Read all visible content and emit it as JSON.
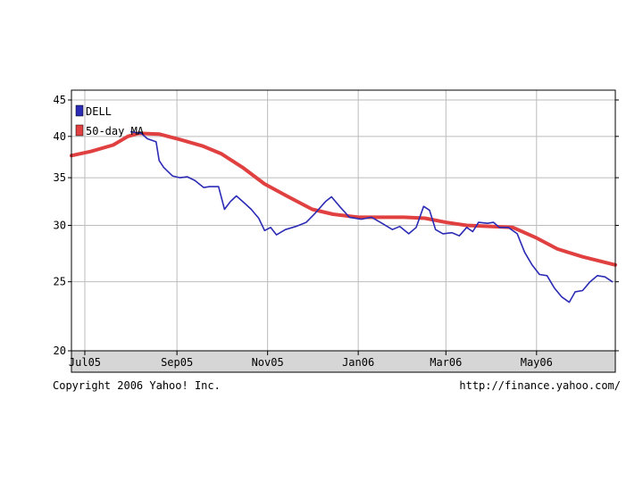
{
  "chart_data": {
    "type": "line",
    "title": "",
    "xlabel": "",
    "ylabel": "",
    "y_scale": "log",
    "ylim": [
      20,
      45
    ],
    "y_ticks": [
      20,
      25,
      30,
      35,
      40,
      45
    ],
    "x_range": [
      "2005-06-22",
      "2006-06-23"
    ],
    "x_ticks": [
      {
        "date": "2005-07-01",
        "label": "Jul05"
      },
      {
        "date": "2005-09-01",
        "label": "Sep05"
      },
      {
        "date": "2005-11-01",
        "label": "Nov05"
      },
      {
        "date": "2006-01-01",
        "label": "Jan06"
      },
      {
        "date": "2006-03-01",
        "label": "Mar06"
      },
      {
        "date": "2006-05-01",
        "label": "May06"
      }
    ],
    "grid": true,
    "legend": "top-left",
    "series": [
      {
        "name": "DELL",
        "color": "#2b2bb5",
        "points": [
          [
            "2005-08-01",
            40.6
          ],
          [
            "2005-08-08",
            40.4
          ],
          [
            "2005-08-12",
            39.7
          ],
          [
            "2005-08-18",
            39.3
          ],
          [
            "2005-08-20",
            37.0
          ],
          [
            "2005-08-23",
            36.2
          ],
          [
            "2005-08-29",
            35.2
          ],
          [
            "2005-09-03",
            35.0
          ],
          [
            "2005-09-08",
            35.1
          ],
          [
            "2005-09-13",
            34.7
          ],
          [
            "2005-09-19",
            33.9
          ],
          [
            "2005-09-23",
            34.0
          ],
          [
            "2005-09-29",
            34.0
          ],
          [
            "2005-10-03",
            31.6
          ],
          [
            "2005-10-07",
            32.4
          ],
          [
            "2005-10-11",
            33.0
          ],
          [
            "2005-10-16",
            32.3
          ],
          [
            "2005-10-21",
            31.6
          ],
          [
            "2005-10-26",
            30.7
          ],
          [
            "2005-10-30",
            29.5
          ],
          [
            "2005-11-03",
            29.8
          ],
          [
            "2005-11-07",
            29.1
          ],
          [
            "2005-11-13",
            29.6
          ],
          [
            "2005-11-20",
            29.9
          ],
          [
            "2005-11-27",
            30.3
          ],
          [
            "2005-12-03",
            31.2
          ],
          [
            "2005-12-10",
            32.4
          ],
          [
            "2005-12-14",
            32.9
          ],
          [
            "2005-12-20",
            31.8
          ],
          [
            "2005-12-26",
            30.8
          ],
          [
            "2006-01-03",
            30.6
          ],
          [
            "2006-01-10",
            30.8
          ],
          [
            "2006-01-17",
            30.2
          ],
          [
            "2006-01-24",
            29.6
          ],
          [
            "2006-01-29",
            29.9
          ],
          [
            "2006-02-04",
            29.2
          ],
          [
            "2006-02-09",
            29.8
          ],
          [
            "2006-02-14",
            31.9
          ],
          [
            "2006-02-18",
            31.5
          ],
          [
            "2006-02-22",
            29.6
          ],
          [
            "2006-02-27",
            29.2
          ],
          [
            "2006-03-05",
            29.3
          ],
          [
            "2006-03-10",
            29.0
          ],
          [
            "2006-03-15",
            29.8
          ],
          [
            "2006-03-19",
            29.4
          ],
          [
            "2006-03-23",
            30.3
          ],
          [
            "2006-03-29",
            30.2
          ],
          [
            "2006-04-02",
            30.3
          ],
          [
            "2006-04-06",
            29.8
          ],
          [
            "2006-04-12",
            29.8
          ],
          [
            "2006-04-18",
            29.2
          ],
          [
            "2006-04-23",
            27.5
          ],
          [
            "2006-04-28",
            26.4
          ],
          [
            "2006-05-03",
            25.6
          ],
          [
            "2006-05-08",
            25.5
          ],
          [
            "2006-05-13",
            24.5
          ],
          [
            "2006-05-18",
            23.8
          ],
          [
            "2006-05-23",
            23.4
          ],
          [
            "2006-05-27",
            24.2
          ],
          [
            "2006-06-01",
            24.3
          ],
          [
            "2006-06-06",
            25.0
          ],
          [
            "2006-06-11",
            25.5
          ],
          [
            "2006-06-16",
            25.4
          ],
          [
            "2006-06-21",
            25.0
          ]
        ]
      },
      {
        "name": "50-day MA",
        "color": "#e04040",
        "points": [
          [
            "2005-06-22",
            37.6
          ],
          [
            "2005-07-05",
            38.1
          ],
          [
            "2005-07-20",
            38.9
          ],
          [
            "2005-07-30",
            40.0
          ],
          [
            "2005-08-06",
            40.4
          ],
          [
            "2005-08-20",
            40.3
          ],
          [
            "2005-09-03",
            39.6
          ],
          [
            "2005-09-18",
            38.8
          ],
          [
            "2005-10-01",
            37.8
          ],
          [
            "2005-10-15",
            36.2
          ],
          [
            "2005-10-30",
            34.3
          ],
          [
            "2005-11-15",
            32.9
          ],
          [
            "2005-12-01",
            31.6
          ],
          [
            "2005-12-15",
            31.1
          ],
          [
            "2006-01-01",
            30.8
          ],
          [
            "2006-01-15",
            30.8
          ],
          [
            "2006-02-01",
            30.8
          ],
          [
            "2006-02-15",
            30.7
          ],
          [
            "2006-03-01",
            30.3
          ],
          [
            "2006-03-15",
            30.0
          ],
          [
            "2006-04-01",
            29.9
          ],
          [
            "2006-04-15",
            29.8
          ],
          [
            "2006-05-01",
            28.8
          ],
          [
            "2006-05-15",
            27.8
          ],
          [
            "2006-06-01",
            27.1
          ],
          [
            "2006-06-23",
            26.4
          ]
        ]
      }
    ]
  },
  "footer": {
    "copyright": "Copyright 2006 Yahoo! Inc.",
    "source_url": "http://finance.yahoo.com/"
  },
  "colors": {
    "frame": "#000000",
    "grid": "#bbbbbb",
    "axis_band": "#d6d6d6",
    "background": "#ffffff"
  }
}
